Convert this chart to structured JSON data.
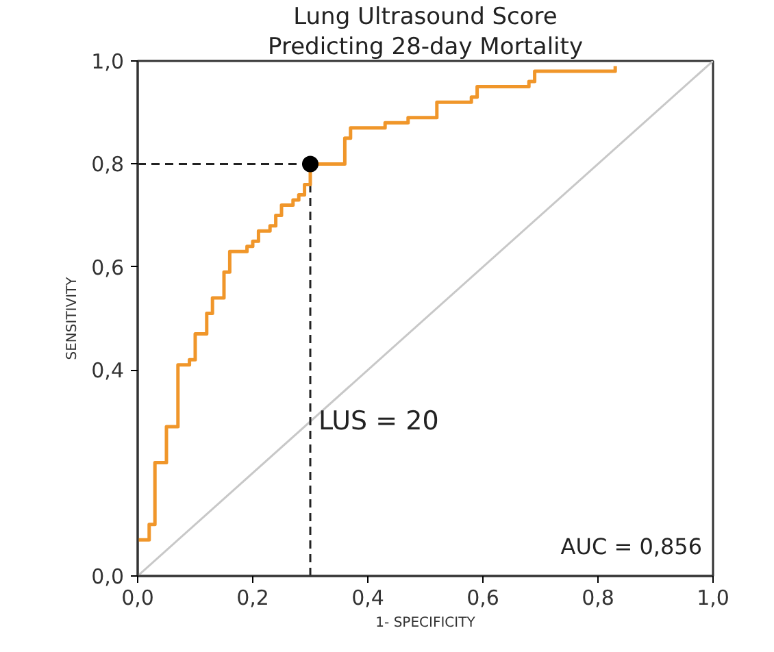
{
  "chart_data": {
    "type": "line",
    "title": "Lung Ultrasound Score",
    "subtitle": "Predicting 28-day Mortality",
    "xlabel": "1- SPECIFICITY",
    "ylabel": "SENSITIVITY",
    "xlim": [
      0,
      1
    ],
    "ylim": [
      0,
      1
    ],
    "xticks": [
      {
        "value": 0,
        "label": "0,0"
      },
      {
        "value": 0.2,
        "label": "0,2"
      },
      {
        "value": 0.4,
        "label": "0,4"
      },
      {
        "value": 0.6,
        "label": "0,6"
      },
      {
        "value": 0.8,
        "label": "0,8"
      },
      {
        "value": 1,
        "label": "1,0"
      }
    ],
    "yticks": [
      {
        "value": 0,
        "label": "0,0"
      },
      {
        "value": 0.4,
        "label": "0,4"
      },
      {
        "value": 0.6,
        "label": "0,6"
      },
      {
        "value": 0.8,
        "label": "0,8"
      },
      {
        "value": 1,
        "label": "1,0"
      }
    ],
    "grid": false,
    "series": [
      {
        "color": "#c8c8c8",
        "line_style": "solid",
        "x": [
          0,
          1
        ],
        "values": [
          0,
          1
        ]
      },
      {
        "color": "#222222",
        "line_style": "dashed",
        "x": [
          0,
          0.3
        ],
        "values": [
          0.8,
          0.8
        ]
      },
      {
        "color": "#222222",
        "line_style": "dashed",
        "x": [
          0.3,
          0.3
        ],
        "values": [
          0,
          0.8
        ]
      },
      {
        "type": "step",
        "color": "#f0962a",
        "line_style": "solid",
        "x": [
          0,
          0.02,
          0.03,
          0.05,
          0.07,
          0.09,
          0.1,
          0.12,
          0.13,
          0.15,
          0.16,
          0.19,
          0.2,
          0.21,
          0.23,
          0.24,
          0.25,
          0.27,
          0.28,
          0.29,
          0.3,
          0.36,
          0.37,
          0.43,
          0.47,
          0.52,
          0.58,
          0.59,
          0.68,
          0.69,
          0.83
        ],
        "values": [
          0.07,
          0.1,
          0.22,
          0.29,
          0.41,
          0.42,
          0.47,
          0.51,
          0.54,
          0.59,
          0.63,
          0.64,
          0.65,
          0.67,
          0.68,
          0.7,
          0.72,
          0.73,
          0.74,
          0.76,
          0.8,
          0.85,
          0.87,
          0.88,
          0.89,
          0.92,
          0.93,
          0.95,
          0.96,
          0.98,
          0.99
        ]
      },
      {
        "type": "scatter",
        "color": "#000000",
        "marker": "circle",
        "x": [
          0.3
        ],
        "values": [
          0.8
        ]
      }
    ],
    "annotations": [
      {
        "text": "LUS = 20",
        "x": 0.3,
        "y": 0.3
      },
      "AUC = 0,856"
    ]
  }
}
